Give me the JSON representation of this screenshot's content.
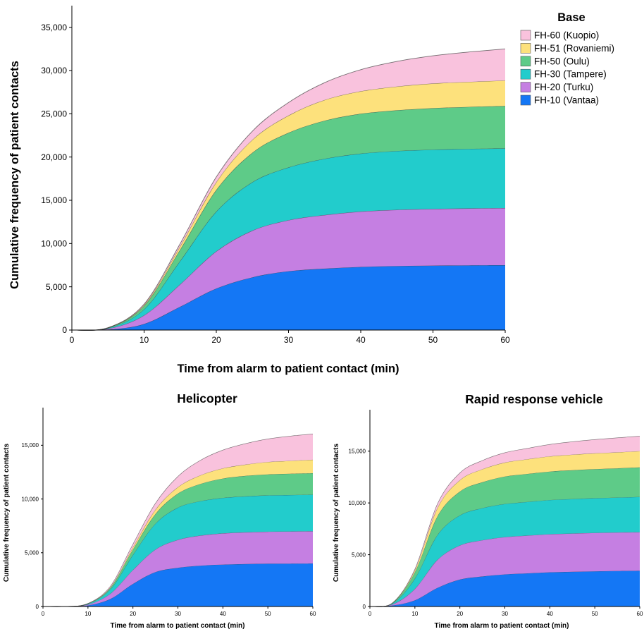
{
  "legend": {
    "title": "Base",
    "items": [
      {
        "label": "FH-60 (Kuopio)",
        "color": "#f9c2dd"
      },
      {
        "label": "FH-51 (Rovaniemi)",
        "color": "#fde17c"
      },
      {
        "label": "FH-50 (Oulu)",
        "color": "#5ecb88"
      },
      {
        "label": "FH-30 (Tampere)",
        "color": "#22cccc"
      },
      {
        "label": "FH-20 (Turku)",
        "color": "#c57fe2"
      },
      {
        "label": "FH-10 (Vantaa)",
        "color": "#1477f5"
      }
    ]
  },
  "chart_data": [
    {
      "type": "area",
      "stacked": true,
      "title": "",
      "xlabel": "Time from alarm to patient contact (min)",
      "ylabel": "Cumulative frequency of patient contacts",
      "xlim": [
        0,
        60
      ],
      "ylim": [
        0,
        37500
      ],
      "x_ticks": [
        "0",
        "10",
        "20",
        "30",
        "40",
        "50",
        "60"
      ],
      "y_ticks": [
        "0",
        "5,000",
        "10,000",
        "15,000",
        "20,000",
        "25,000",
        "30,000",
        "35,000"
      ],
      "x": [
        0,
        5,
        10,
        15,
        20,
        25,
        30,
        35,
        40,
        45,
        50,
        55,
        60
      ],
      "series": [
        {
          "name": "FH-10 (Vantaa)",
          "color": "#1477f5",
          "values": [
            0,
            50,
            700,
            2700,
            4800,
            6100,
            6800,
            7100,
            7300,
            7400,
            7450,
            7480,
            7500
          ]
        },
        {
          "name": "FH-20 (Turku)",
          "color": "#c57fe2",
          "values": [
            0,
            100,
            1000,
            2600,
            4300,
            5400,
            5900,
            6200,
            6400,
            6500,
            6550,
            6580,
            6600
          ]
        },
        {
          "name": "FH-30 (Tampere)",
          "color": "#22cccc",
          "values": [
            0,
            60,
            700,
            2700,
            4600,
            5600,
            6100,
            6500,
            6700,
            6800,
            6850,
            6880,
            6900
          ]
        },
        {
          "name": "FH-50 (Oulu)",
          "color": "#5ecb88",
          "values": [
            0,
            40,
            400,
            1300,
            2500,
            3400,
            4000,
            4400,
            4600,
            4700,
            4800,
            4850,
            4900
          ]
        },
        {
          "name": "FH-51 (Rovaniemi)",
          "color": "#fde17c",
          "values": [
            0,
            10,
            100,
            400,
            900,
            1500,
            2000,
            2400,
            2600,
            2750,
            2850,
            2900,
            2950
          ]
        },
        {
          "name": "FH-60 (Kuopio)",
          "color": "#f9c2dd",
          "values": [
            0,
            10,
            100,
            300,
            600,
            1000,
            1500,
            2000,
            2500,
            2900,
            3200,
            3450,
            3650
          ]
        }
      ]
    },
    {
      "type": "area",
      "stacked": true,
      "title": "Helicopter",
      "xlabel": "Time from alarm to patient contact (min)",
      "ylabel": "Cumulative frequency of patient contacts",
      "xlim": [
        0,
        60
      ],
      "ylim": [
        0,
        18500
      ],
      "x_ticks": [
        "0",
        "10",
        "20",
        "30",
        "40",
        "50",
        "60"
      ],
      "y_ticks": [
        "0",
        "5,000",
        "10,000",
        "15,000"
      ],
      "x": [
        0,
        5,
        10,
        15,
        20,
        25,
        30,
        35,
        40,
        45,
        50,
        55,
        60
      ],
      "series": [
        {
          "name": "FH-10 (Vantaa)",
          "color": "#1477f5",
          "values": [
            0,
            0,
            100,
            700,
            2100,
            3200,
            3600,
            3800,
            3900,
            3950,
            3980,
            3990,
            4000
          ]
        },
        {
          "name": "FH-20 (Turku)",
          "color": "#c57fe2",
          "values": [
            0,
            0,
            80,
            500,
            1300,
            2100,
            2600,
            2800,
            2900,
            2950,
            2980,
            2990,
            3000
          ]
        },
        {
          "name": "FH-30 (Tampere)",
          "color": "#22cccc",
          "values": [
            0,
            0,
            60,
            400,
            1400,
            2400,
            3000,
            3200,
            3300,
            3350,
            3380,
            3390,
            3400
          ]
        },
        {
          "name": "FH-50 (Oulu)",
          "color": "#5ecb88",
          "values": [
            0,
            0,
            20,
            150,
            500,
            900,
            1300,
            1600,
            1800,
            1900,
            1950,
            1980,
            2000
          ]
        },
        {
          "name": "FH-51 (Rovaniemi)",
          "color": "#fde17c",
          "values": [
            0,
            0,
            10,
            50,
            200,
            400,
            600,
            800,
            950,
            1050,
            1150,
            1200,
            1250
          ]
        },
        {
          "name": "FH-60 (Kuopio)",
          "color": "#f9c2dd",
          "values": [
            0,
            0,
            10,
            100,
            300,
            600,
            1000,
            1400,
            1700,
            1950,
            2150,
            2300,
            2400
          ]
        }
      ]
    },
    {
      "type": "area",
      "stacked": true,
      "title": "Rapid response vehicle",
      "xlabel": "Time from alarm to patient contact (min)",
      "ylabel": "Cumulative frequency of patient contacts",
      "xlim": [
        0,
        60
      ],
      "ylim": [
        0,
        19000
      ],
      "x_ticks": [
        "0",
        "10",
        "20",
        "30",
        "40",
        "50",
        "60"
      ],
      "y_ticks": [
        "0",
        "5,000",
        "10,000",
        "15,000"
      ],
      "x": [
        0,
        5,
        10,
        15,
        20,
        25,
        30,
        35,
        40,
        45,
        50,
        55,
        60
      ],
      "series": [
        {
          "name": "FH-10 (Vantaa)",
          "color": "#1477f5",
          "values": [
            0,
            100,
            600,
            1800,
            2600,
            2900,
            3100,
            3200,
            3300,
            3350,
            3400,
            3430,
            3450
          ]
        },
        {
          "name": "FH-20 (Turku)",
          "color": "#c57fe2",
          "values": [
            0,
            100,
            1100,
            2700,
            3300,
            3500,
            3600,
            3650,
            3680,
            3700,
            3710,
            3720,
            3730
          ]
        },
        {
          "name": "FH-30 (Tampere)",
          "color": "#22cccc",
          "values": [
            0,
            80,
            1000,
            2400,
            2900,
            3100,
            3200,
            3250,
            3300,
            3330,
            3350,
            3370,
            3400
          ]
        },
        {
          "name": "FH-50 (Oulu)",
          "color": "#5ecb88",
          "values": [
            0,
            40,
            600,
            1800,
            2300,
            2500,
            2650,
            2700,
            2750,
            2780,
            2800,
            2820,
            2850
          ]
        },
        {
          "name": "FH-51 (Rovaniemi)",
          "color": "#fde17c",
          "values": [
            0,
            10,
            200,
            800,
            1100,
            1250,
            1350,
            1420,
            1470,
            1500,
            1530,
            1550,
            1570
          ]
        },
        {
          "name": "FH-60 (Kuopio)",
          "color": "#f9c2dd",
          "values": [
            0,
            10,
            100,
            400,
            700,
            850,
            950,
            1050,
            1150,
            1250,
            1330,
            1400,
            1450
          ]
        }
      ]
    }
  ]
}
